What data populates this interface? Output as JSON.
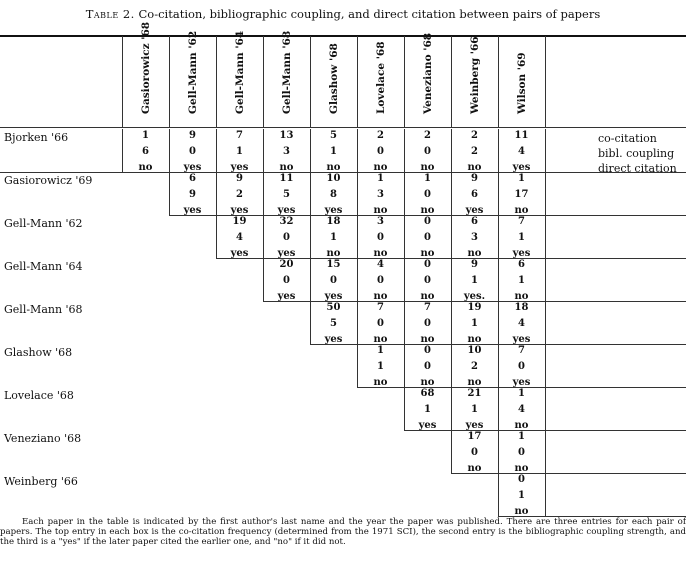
{
  "caption": {
    "label": "Table 2.",
    "text": "Co-citation, bibliographic coupling, and direct citation between pairs of papers"
  },
  "columns": [
    "Gasiorowicz '68",
    "Gell-Mann '62",
    "Gell-Mann '64",
    "Gell-Mann '68",
    "Glashow '68",
    "Lovelace '68",
    "Veneziano '68",
    "Weinberg '66",
    "Wilson '69"
  ],
  "rows": [
    {
      "label": "Bjorken '66",
      "cells": [
        [
          "1",
          "6",
          "no"
        ],
        [
          "9",
          "0",
          "yes"
        ],
        [
          "7",
          "1",
          "yes"
        ],
        [
          "13",
          "3",
          "no"
        ],
        [
          "5",
          "1",
          "no"
        ],
        [
          "2",
          "0",
          "no"
        ],
        [
          "2",
          "0",
          "no"
        ],
        [
          "2",
          "2",
          "no"
        ],
        [
          "11",
          "4",
          "yes"
        ]
      ]
    },
    {
      "label": "Gasiorowicz '69",
      "cells": [
        [
          "6",
          "9",
          "yes"
        ],
        [
          "9",
          "2",
          "yes"
        ],
        [
          "11",
          "5",
          "yes"
        ],
        [
          "10",
          "8",
          "yes"
        ],
        [
          "1",
          "3",
          "no"
        ],
        [
          "1",
          "0",
          "no"
        ],
        [
          "9",
          "6",
          "yes"
        ],
        [
          "1",
          "17",
          "no"
        ]
      ]
    },
    {
      "label": "Gell-Mann '62",
      "cells": [
        [
          "19",
          "4",
          "yes"
        ],
        [
          "32",
          "0",
          "yes"
        ],
        [
          "18",
          "1",
          "no"
        ],
        [
          "3",
          "0",
          "no"
        ],
        [
          "0",
          "0",
          "no"
        ],
        [
          "6",
          "3",
          "no"
        ],
        [
          "7",
          "1",
          "yes"
        ]
      ]
    },
    {
      "label": "Gell-Mann '64",
      "cells": [
        [
          "20",
          "0",
          "yes"
        ],
        [
          "15",
          "0",
          "yes"
        ],
        [
          "4",
          "0",
          "no"
        ],
        [
          "0",
          "0",
          "no"
        ],
        [
          "9",
          "1",
          "yes."
        ],
        [
          "6",
          "1",
          "no"
        ]
      ]
    },
    {
      "label": "Gell-Mann '68",
      "cells": [
        [
          "50",
          "5",
          "yes"
        ],
        [
          "7",
          "0",
          "no"
        ],
        [
          "7",
          "0",
          "no"
        ],
        [
          "19",
          "1",
          "no"
        ],
        [
          "18",
          "4",
          "yes"
        ]
      ]
    },
    {
      "label": "Glashow '68",
      "cells": [
        [
          "1",
          "1",
          "no"
        ],
        [
          "0",
          "0",
          "no"
        ],
        [
          "10",
          "2",
          "no"
        ],
        [
          "7",
          "0",
          "yes"
        ]
      ]
    },
    {
      "label": "Lovelace '68",
      "cells": [
        [
          "68",
          "1",
          "yes"
        ],
        [
          "21",
          "1",
          "yes"
        ],
        [
          "1",
          "4",
          "no"
        ]
      ]
    },
    {
      "label": "Veneziano '68",
      "cells": [
        [
          "17",
          "0",
          "no"
        ],
        [
          "1",
          "0",
          "no"
        ]
      ]
    },
    {
      "label": "Weinberg '66",
      "cells": [
        [
          "0",
          "1",
          "no"
        ]
      ]
    }
  ],
  "legend": [
    "co-citation",
    "bibl. coupling",
    "direct citation"
  ],
  "footnote": "Each paper in the table is indicated by the first author's last name and the year the paper was published. There are three entries for each pair of papers. The top entry in each box is the co-citation frequency (determined from the 1971 SCI), the second entry is the bibliographic coupling strength, and the third is a \"yes\" if the later paper cited the earlier one, and \"no\" if it did not."
}
